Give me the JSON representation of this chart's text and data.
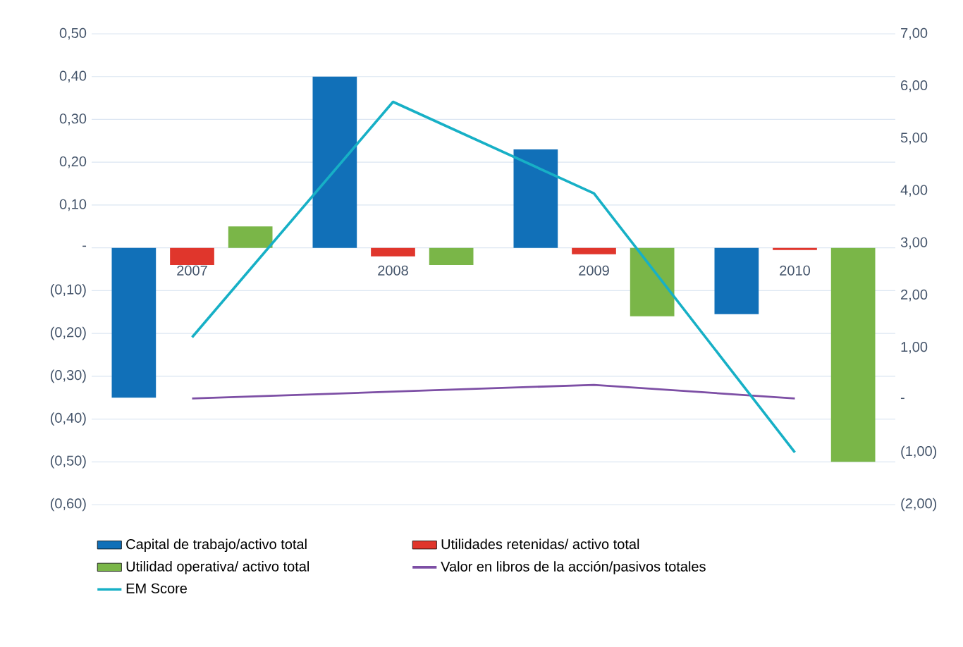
{
  "chart_data": {
    "type": "bar",
    "categories": [
      "2007",
      "2008",
      "2009",
      "2010"
    ],
    "series": [
      {
        "name": "Capital de trabajo/activo total",
        "type": "bar",
        "color": "#1170b8",
        "values": [
          -0.35,
          0.4,
          0.23,
          -0.155
        ]
      },
      {
        "name": "Utilidades retenidas/ activo total",
        "type": "bar",
        "color": "#e0362c",
        "values": [
          -0.04,
          -0.02,
          -0.015,
          -0.005
        ]
      },
      {
        "name": "Utilidad operativa/ activo total",
        "type": "bar",
        "color": "#7ab648",
        "values": [
          0.05,
          -0.04,
          -0.16,
          -0.5
        ]
      },
      {
        "name": "Valor en libros de la acción/pasivos totales",
        "type": "line",
        "axis": "y2",
        "color": "#7d4fa5",
        "values": [
          0.03,
          0.16,
          0.29,
          0.03
        ]
      },
      {
        "name": "EM Score",
        "type": "line",
        "axis": "y2",
        "color": "#17b0c6",
        "values": [
          1.2,
          5.7,
          3.95,
          -1.0
        ]
      }
    ],
    "ylim": [
      -0.6,
      0.5
    ],
    "yticks": [
      {
        "value": -0.6,
        "label": "(0,60)"
      },
      {
        "value": -0.5,
        "label": "(0,50)"
      },
      {
        "value": -0.4,
        "label": "(0,40)"
      },
      {
        "value": -0.3,
        "label": "(0,30)"
      },
      {
        "value": -0.2,
        "label": "(0,20)"
      },
      {
        "value": -0.1,
        "label": "(0,10)"
      },
      {
        "value": 0,
        "label": "-"
      },
      {
        "value": 0.1,
        "label": "0,10"
      },
      {
        "value": 0.2,
        "label": "0,20"
      },
      {
        "value": 0.3,
        "label": "0,30"
      },
      {
        "value": 0.4,
        "label": "0,40"
      },
      {
        "value": 0.5,
        "label": "0,50"
      }
    ],
    "y2lim": [
      -2,
      7
    ],
    "y2ticks": [
      {
        "value": -2,
        "label": "(2,00)"
      },
      {
        "value": -1,
        "label": "(1,00)"
      },
      {
        "value": 0,
        "label": "-"
      },
      {
        "value": 1,
        "label": "1,00"
      },
      {
        "value": 2,
        "label": "2,00"
      },
      {
        "value": 3,
        "label": "3,00"
      },
      {
        "value": 4,
        "label": "4,00"
      },
      {
        "value": 5,
        "label": "5,00"
      },
      {
        "value": 6,
        "label": "6,00"
      },
      {
        "value": 7,
        "label": "7,00"
      }
    ],
    "grid": "y",
    "legend": "bottom"
  }
}
